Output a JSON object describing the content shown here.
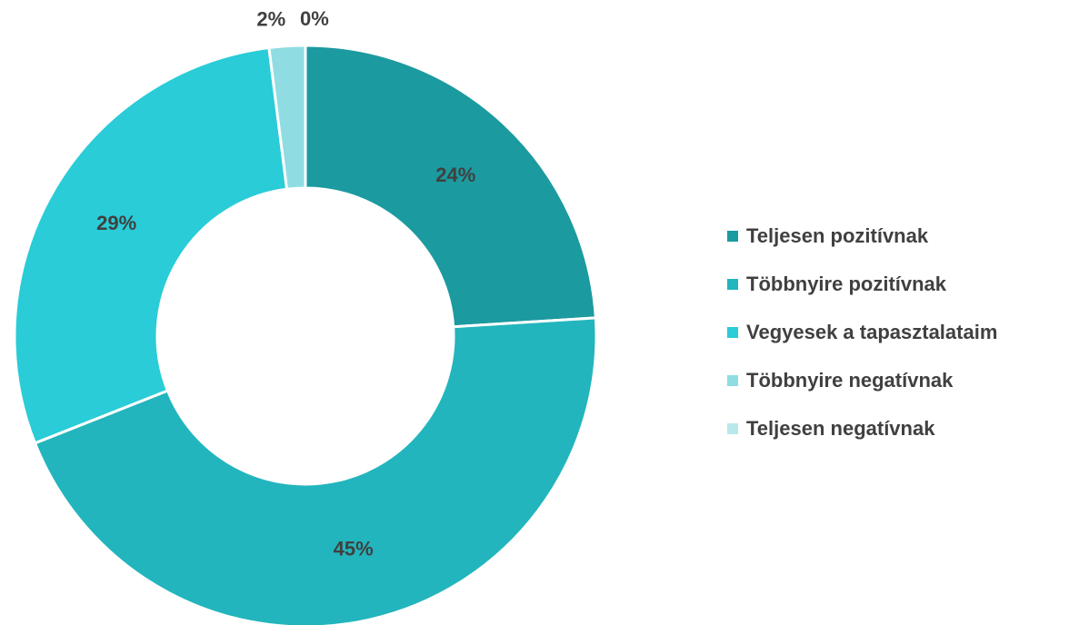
{
  "chart_data": {
    "type": "donut",
    "categories": [
      "Teljesen pozitívnak",
      "Többnyire pozitívnak",
      "Vegyesek a tapasztalataim",
      "Többnyire negatívnak",
      "Teljesen negatívnak"
    ],
    "values": [
      24,
      45,
      29,
      2,
      0
    ],
    "value_labels": [
      "24%",
      "45%",
      "29%",
      "2%",
      "0%"
    ],
    "colors": [
      "#1b9aa0",
      "#22b5bd",
      "#29ccd7",
      "#8fdde2",
      "#b8e8eb"
    ],
    "legend": "right"
  }
}
